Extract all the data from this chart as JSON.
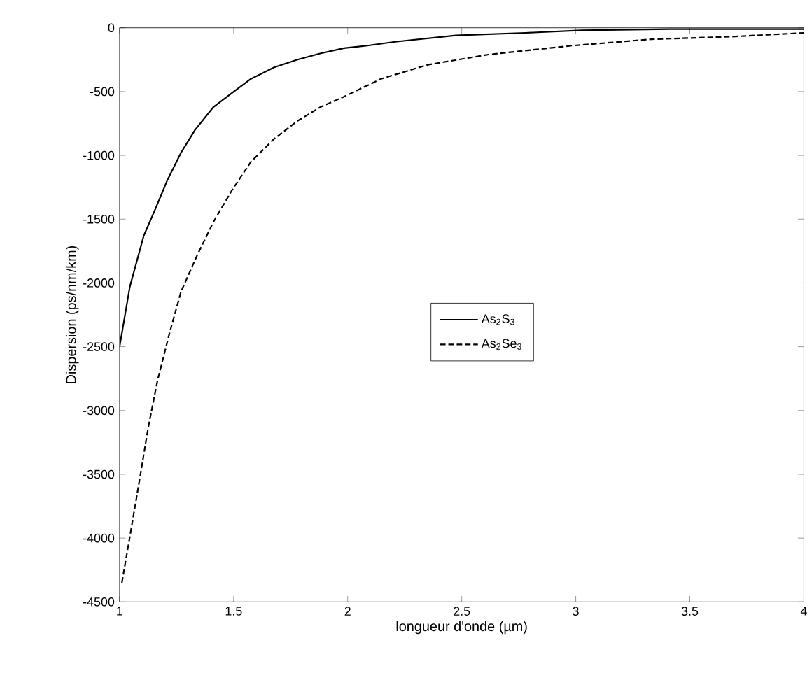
{
  "chart_data": {
    "type": "line",
    "xlabel": "longueur d'onde (µm)",
    "ylabel": "Dispersion (ps/nm/km)",
    "xlim": [
      1,
      4
    ],
    "ylim": [
      -4500,
      0
    ],
    "xticks": [
      1,
      1.5,
      2,
      2.5,
      3,
      3.5,
      4
    ],
    "yticks": [
      -4500,
      -4000,
      -3500,
      -3000,
      -2500,
      -2000,
      -1500,
      -1000,
      -500,
      0
    ],
    "legend": "center",
    "grid": false,
    "series": [
      {
        "name": "As$_{2}$S$_{3}$",
        "color": "#000000",
        "line_style": "solid",
        "x": [
          1.0,
          1.045,
          1.106,
          1.157,
          1.208,
          1.269,
          1.331,
          1.412,
          1.494,
          1.576,
          1.678,
          1.78,
          1.882,
          1.984,
          2.086,
          2.208,
          2.474,
          2.78,
          3.025,
          3.413,
          4.0
        ],
        "values": [
          -2500,
          -2030,
          -1630,
          -1420,
          -1200,
          -980,
          -800,
          -620,
          -510,
          -400,
          -310,
          -250,
          -200,
          -160,
          -140,
          -110,
          -60,
          -40,
          -20,
          -10,
          -10
        ]
      },
      {
        "name": "As$_{2}$Se$_{3}$",
        "color": "#000000",
        "line_style": "dashed",
        "x": [
          1.01,
          1.045,
          1.086,
          1.127,
          1.167,
          1.218,
          1.269,
          1.341,
          1.412,
          1.494,
          1.576,
          1.678,
          1.78,
          1.882,
          1.984,
          2.147,
          2.351,
          2.617,
          2.984,
          3.331,
          3.678,
          4.0
        ],
        "values": [
          -4350,
          -3990,
          -3560,
          -3120,
          -2760,
          -2400,
          -2070,
          -1780,
          -1520,
          -1270,
          -1050,
          -870,
          -730,
          -620,
          -540,
          -400,
          -290,
          -210,
          -140,
          -90,
          -70,
          -40
        ]
      }
    ]
  }
}
